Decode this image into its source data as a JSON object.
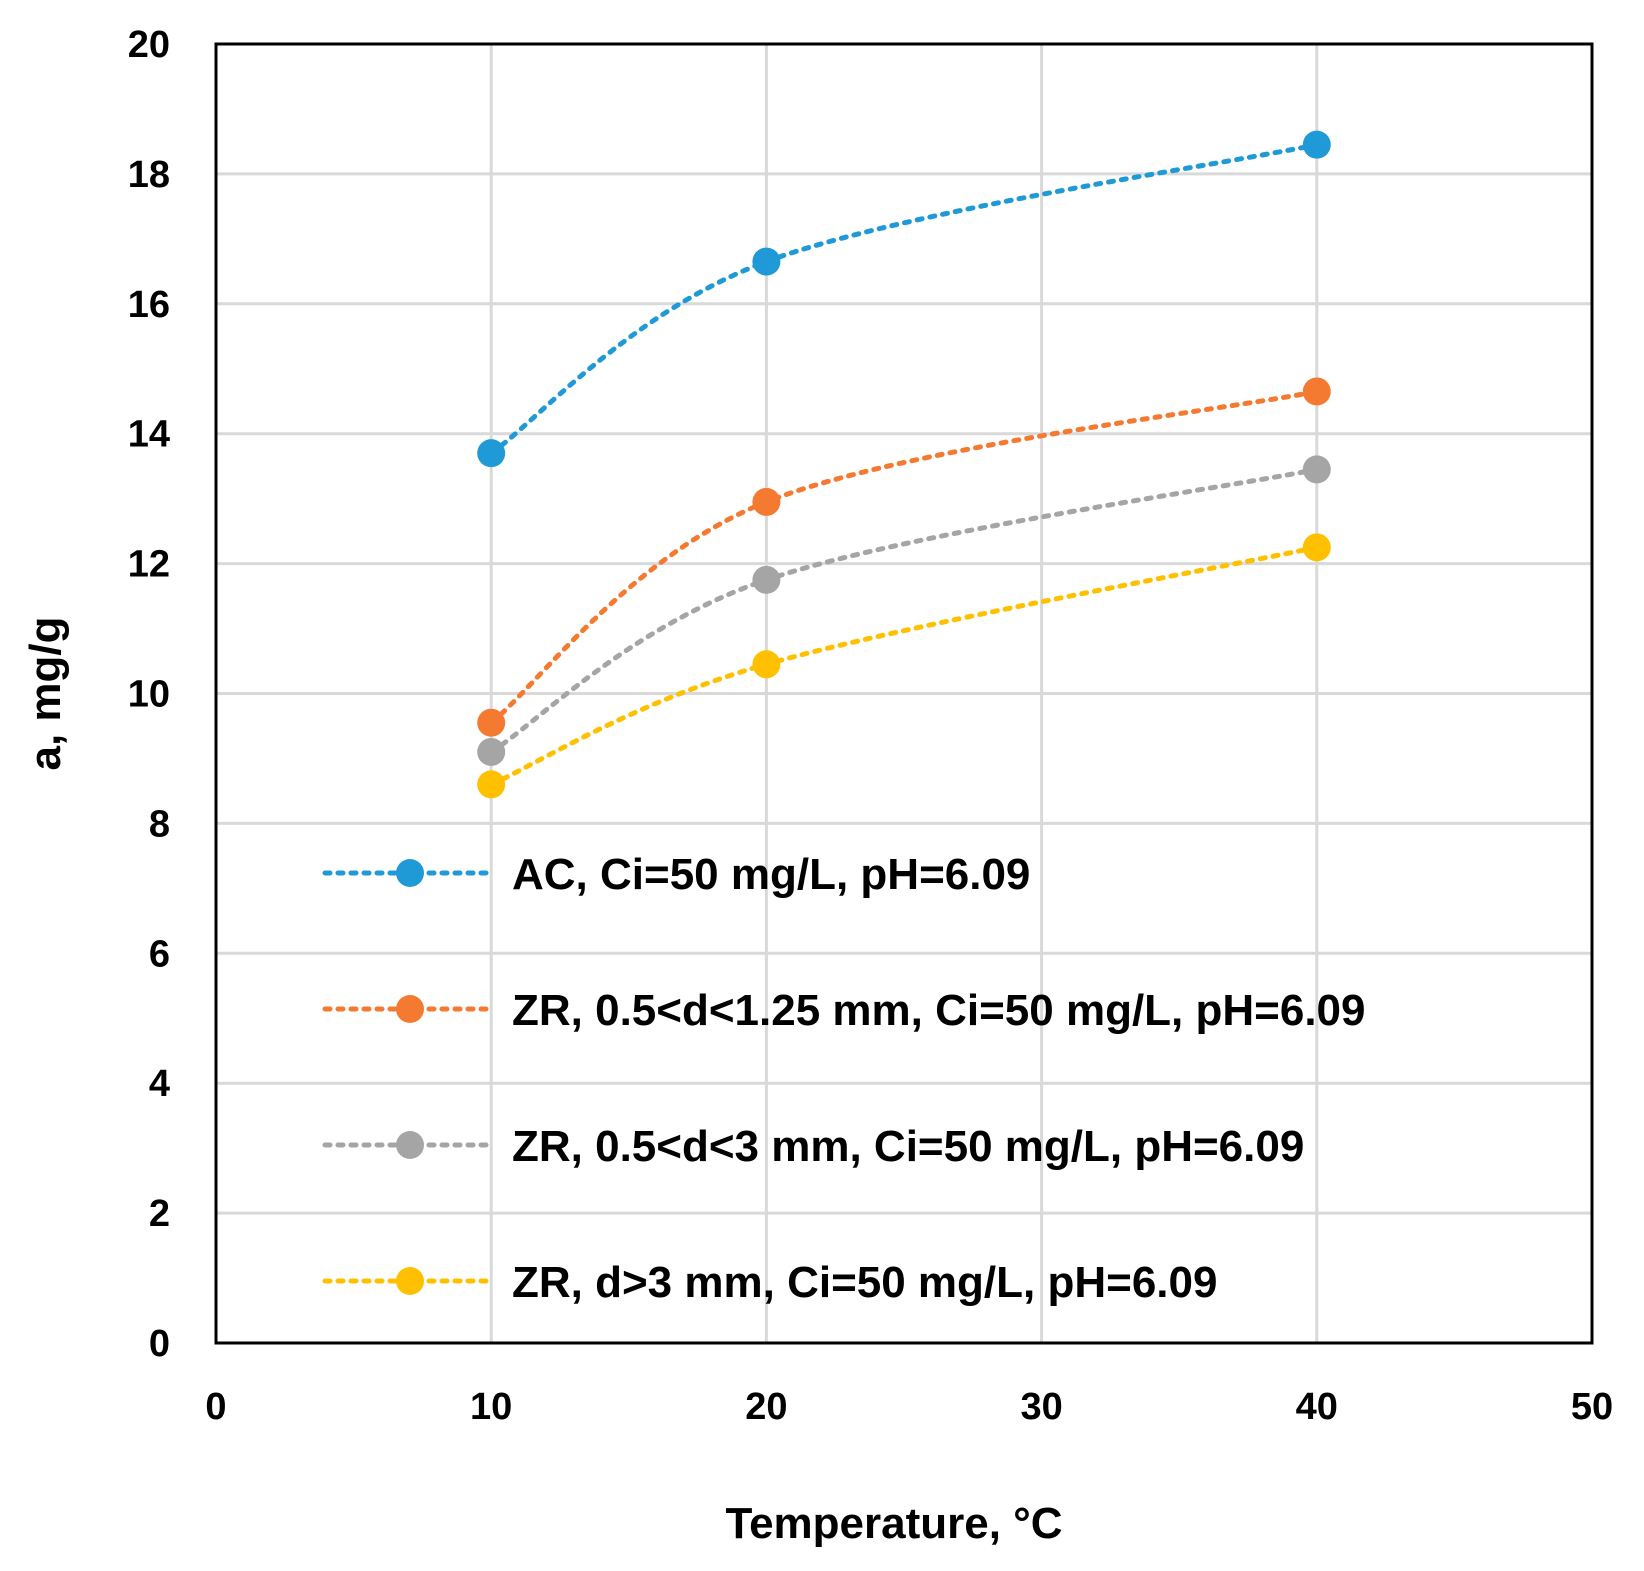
{
  "chart_data": {
    "type": "scatter",
    "title": "",
    "xlabel": "Temperature, °C",
    "ylabel": "a, mg/g",
    "xlim": [
      0,
      50
    ],
    "ylim": [
      0,
      20
    ],
    "xticks": [
      0,
      10,
      20,
      30,
      40,
      50
    ],
    "yticks": [
      0,
      2,
      4,
      6,
      8,
      10,
      12,
      14,
      16,
      18,
      20
    ],
    "grid": true,
    "legend_position": "bottom-center inside",
    "line_style": "dotted smoothed",
    "series": [
      {
        "name": "AC, Ci=50 mg/L, pH=6.09",
        "color": "#1f9ad6",
        "x": [
          10,
          20,
          40
        ],
        "y": [
          13.7,
          16.65,
          18.45
        ]
      },
      {
        "name": "ZR, 0.5<d<1.25 mm, Ci=50 mg/L, pH=6.09",
        "color": "#f47a31",
        "x": [
          10,
          20,
          40
        ],
        "y": [
          9.55,
          12.95,
          14.65
        ]
      },
      {
        "name": "ZR, 0.5<d<3 mm, Ci=50 mg/L, pH=6.09",
        "color": "#a5a5a5",
        "x": [
          10,
          20,
          40
        ],
        "y": [
          9.1,
          11.75,
          13.45
        ]
      },
      {
        "name": "ZR, d>3 mm, Ci=50 mg/L, pH=6.09",
        "color": "#ffc000",
        "x": [
          10,
          20,
          40
        ],
        "y": [
          8.6,
          10.45,
          12.25
        ]
      }
    ]
  }
}
